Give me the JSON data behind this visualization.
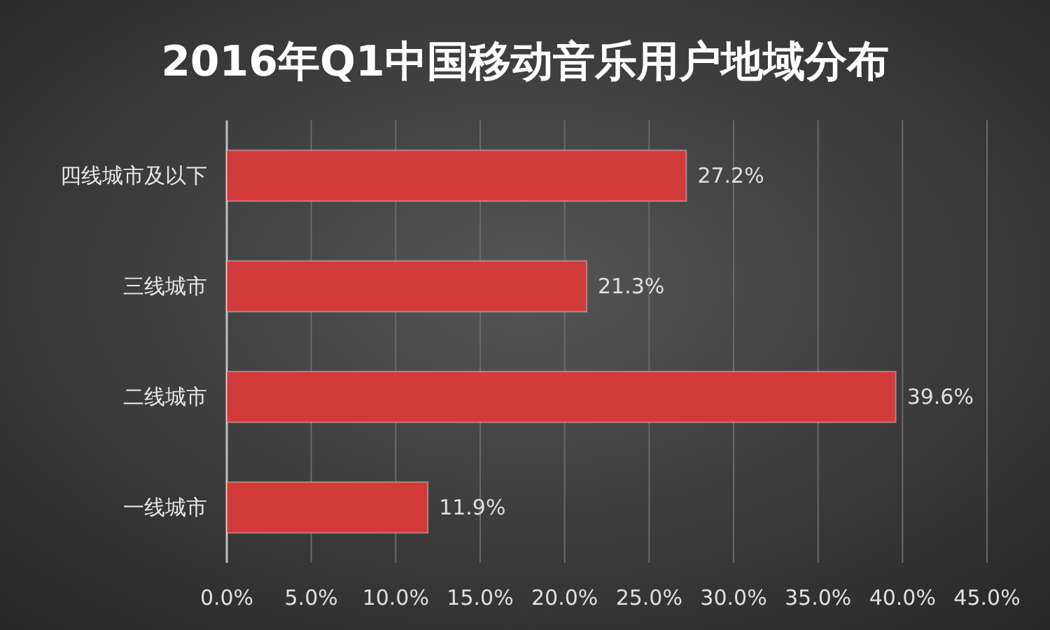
{
  "chart_data": {
    "type": "bar",
    "orientation": "horizontal",
    "title": "2016年Q1中国移动音乐用户地域分布",
    "categories": [
      "四线城市及以下",
      "三线城市",
      "二线城市",
      "一线城市"
    ],
    "values": [
      27.2,
      21.3,
      39.6,
      11.9
    ],
    "value_labels": [
      "27.2%",
      "21.3%",
      "39.6%",
      "11.9%"
    ],
    "color": "#d23a3a",
    "xlim": [
      0,
      45
    ],
    "xticks": [
      {
        "value": 0,
        "label": "0.0%"
      },
      {
        "value": 5,
        "label": "5.0%"
      },
      {
        "value": 10,
        "label": "10.0%"
      },
      {
        "value": 15,
        "label": "15.0%"
      },
      {
        "value": 20,
        "label": "20.0%"
      },
      {
        "value": 25,
        "label": "25.0%"
      },
      {
        "value": 30,
        "label": "30.0%"
      },
      {
        "value": 35,
        "label": "35.0%"
      },
      {
        "value": 40,
        "label": "40.0%"
      },
      {
        "value": 45,
        "label": "45.0%"
      }
    ],
    "grid": "x"
  }
}
